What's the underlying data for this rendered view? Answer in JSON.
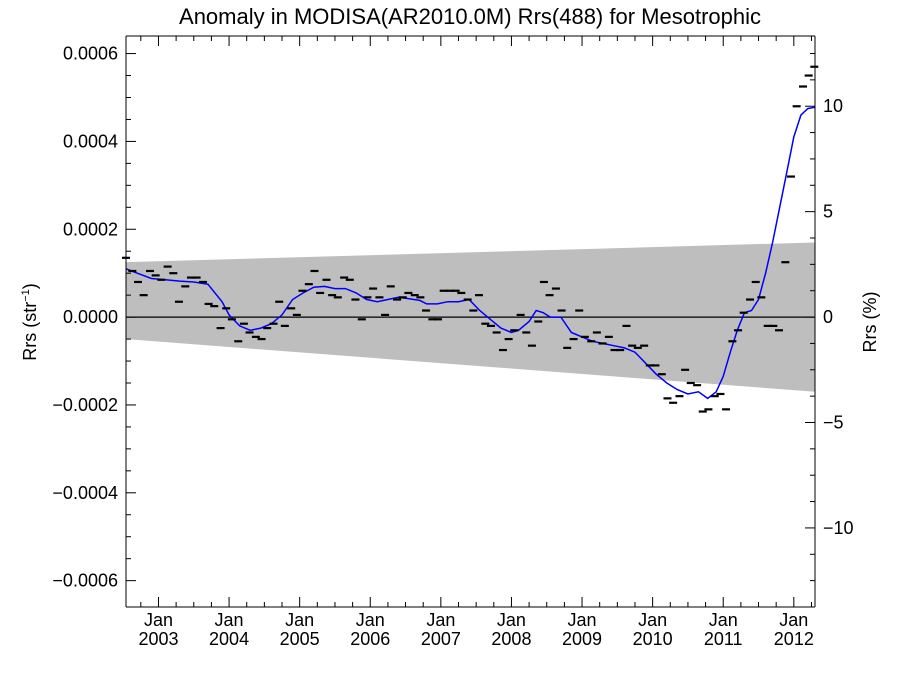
{
  "chart_data": {
    "type": "line",
    "title": "Anomaly in MODISA(AR2010.0M) Rrs(488) for Mesotrophic",
    "ylabel": "Rrs (str",
    "ylabel_sup": "−1",
    "ylabel_close": ")",
    "y2label": "Rrs (%)",
    "y2_scale_percent_per_unit": 20833,
    "xlim": [
      2002.54,
      2012.3
    ],
    "ylim": [
      -0.00066,
      0.00064
    ],
    "y2lim": [
      -13.75,
      13.33
    ],
    "x_ticks": [
      {
        "x": 2003.0,
        "month": "Jan",
        "year": "2003"
      },
      {
        "x": 2004.0,
        "month": "Jan",
        "year": "2004"
      },
      {
        "x": 2005.0,
        "month": "Jan",
        "year": "2005"
      },
      {
        "x": 2006.0,
        "month": "Jan",
        "year": "2006"
      },
      {
        "x": 2007.0,
        "month": "Jan",
        "year": "2007"
      },
      {
        "x": 2008.0,
        "month": "Jan",
        "year": "2008"
      },
      {
        "x": 2009.0,
        "month": "Jan",
        "year": "2009"
      },
      {
        "x": 2010.0,
        "month": "Jan",
        "year": "2010"
      },
      {
        "x": 2011.0,
        "month": "Jan",
        "year": "2011"
      },
      {
        "x": 2012.0,
        "month": "Jan",
        "year": "2012"
      }
    ],
    "y_ticks": [
      {
        "v": 0.0006,
        "label": "0.0006"
      },
      {
        "v": 0.0004,
        "label": "0.0004"
      },
      {
        "v": 0.0002,
        "label": "0.0002"
      },
      {
        "v": 0.0,
        "label": "0.0000"
      },
      {
        "v": -0.0002,
        "label": "−0.0002"
      },
      {
        "v": -0.0004,
        "label": "−0.0004"
      },
      {
        "v": -0.0006,
        "label": "−0.0006"
      }
    ],
    "y2_ticks": [
      {
        "v": 10,
        "label": "10"
      },
      {
        "v": 5,
        "label": "5"
      },
      {
        "v": 0,
        "label": "0"
      },
      {
        "v": -5,
        "label": "−5"
      },
      {
        "v": -10,
        "label": "−10"
      }
    ],
    "band": {
      "x": [
        2002.54,
        2012.3
      ],
      "upper": [
        0.000125,
        0.00017
      ],
      "lower": [
        -5e-05,
        -0.00017
      ]
    },
    "grid": false,
    "series": [
      {
        "kind": "monthly-anomaly-markers",
        "color": "#000000",
        "points": [
          [
            2002.54,
            0.000135
          ],
          [
            2002.63,
            0.000105
          ],
          [
            2002.71,
            8e-05
          ],
          [
            2002.79,
            5e-05
          ],
          [
            2002.88,
            0.000105
          ],
          [
            2002.96,
            9.5e-05
          ],
          [
            2003.04,
            8.5e-05
          ],
          [
            2003.13,
            0.000115
          ],
          [
            2003.21,
            0.0001
          ],
          [
            2003.29,
            3.5e-05
          ],
          [
            2003.38,
            7e-05
          ],
          [
            2003.46,
            9e-05
          ],
          [
            2003.54,
            9e-05
          ],
          [
            2003.63,
            8e-05
          ],
          [
            2003.71,
            3e-05
          ],
          [
            2003.79,
            2.5e-05
          ],
          [
            2003.88,
            -2.5e-05
          ],
          [
            2003.96,
            2e-05
          ],
          [
            2004.04,
            -5e-06
          ],
          [
            2004.13,
            -5.5e-05
          ],
          [
            2004.21,
            -1.5e-05
          ],
          [
            2004.29,
            -3.5e-05
          ],
          [
            2004.38,
            -4.5e-05
          ],
          [
            2004.46,
            -5e-05
          ],
          [
            2004.54,
            -2.5e-05
          ],
          [
            2004.63,
            -1.5e-05
          ],
          [
            2004.71,
            3.5e-05
          ],
          [
            2004.79,
            -2e-05
          ],
          [
            2004.88,
            2e-05
          ],
          [
            2004.96,
            5e-06
          ],
          [
            2005.04,
            6e-05
          ],
          [
            2005.13,
            7.5e-05
          ],
          [
            2005.21,
            0.000105
          ],
          [
            2005.29,
            5.5e-05
          ],
          [
            2005.38,
            8.5e-05
          ],
          [
            2005.46,
            5e-05
          ],
          [
            2005.54,
            4.5e-05
          ],
          [
            2005.63,
            9e-05
          ],
          [
            2005.71,
            8.5e-05
          ],
          [
            2005.79,
            4e-05
          ],
          [
            2005.88,
            -5e-06
          ],
          [
            2005.96,
            4.5e-05
          ],
          [
            2006.04,
            6.5e-05
          ],
          [
            2006.13,
            4.5e-05
          ],
          [
            2006.21,
            5e-06
          ],
          [
            2006.29,
            7e-05
          ],
          [
            2006.38,
            4e-05
          ],
          [
            2006.46,
            4.5e-05
          ],
          [
            2006.54,
            5.5e-05
          ],
          [
            2006.63,
            5e-05
          ],
          [
            2006.71,
            4.5e-05
          ],
          [
            2006.79,
            1.5e-05
          ],
          [
            2006.88,
            -5e-06
          ],
          [
            2006.96,
            -5e-06
          ],
          [
            2007.04,
            6e-05
          ],
          [
            2007.13,
            6e-05
          ],
          [
            2007.21,
            6e-05
          ],
          [
            2007.29,
            5.5e-05
          ],
          [
            2007.38,
            4e-05
          ],
          [
            2007.46,
            1.5e-05
          ],
          [
            2007.54,
            5e-05
          ],
          [
            2007.63,
            -1.5e-05
          ],
          [
            2007.71,
            -2e-05
          ],
          [
            2007.79,
            -3.5e-05
          ],
          [
            2007.88,
            -7.5e-05
          ],
          [
            2007.96,
            -5e-05
          ],
          [
            2008.04,
            -3e-05
          ],
          [
            2008.13,
            5e-06
          ],
          [
            2008.21,
            -3.5e-05
          ],
          [
            2008.29,
            -6.5e-05
          ],
          [
            2008.38,
            -1e-05
          ],
          [
            2008.46,
            8e-05
          ],
          [
            2008.54,
            5e-05
          ],
          [
            2008.63,
            6.5e-05
          ],
          [
            2008.71,
            1.5e-05
          ],
          [
            2008.79,
            -7e-05
          ],
          [
            2008.88,
            -5e-05
          ],
          [
            2008.96,
            1.5e-05
          ],
          [
            2009.04,
            -4.5e-05
          ],
          [
            2009.13,
            -5.5e-05
          ],
          [
            2009.21,
            -3.5e-05
          ],
          [
            2009.29,
            -6e-05
          ],
          [
            2009.38,
            -4.5e-05
          ],
          [
            2009.46,
            -7.5e-05
          ],
          [
            2009.54,
            -7.5e-05
          ],
          [
            2009.63,
            -2e-05
          ],
          [
            2009.71,
            -6.5e-05
          ],
          [
            2009.79,
            -7e-05
          ],
          [
            2009.88,
            -6.5e-05
          ],
          [
            2009.96,
            -0.00011
          ],
          [
            2010.04,
            -0.00011
          ],
          [
            2010.13,
            -0.00013
          ],
          [
            2010.21,
            -0.000185
          ],
          [
            2010.29,
            -0.000195
          ],
          [
            2010.38,
            -0.00018
          ],
          [
            2010.46,
            -0.00012
          ],
          [
            2010.54,
            -0.00015
          ],
          [
            2010.63,
            -0.000155
          ],
          [
            2010.71,
            -0.000215
          ],
          [
            2010.79,
            -0.00021
          ],
          [
            2010.88,
            -0.00018
          ],
          [
            2010.96,
            -0.000175
          ],
          [
            2011.04,
            -0.00021
          ],
          [
            2011.13,
            -5.5e-05
          ],
          [
            2011.21,
            -3e-05
          ],
          [
            2011.29,
            1e-05
          ],
          [
            2011.38,
            4e-05
          ],
          [
            2011.46,
            8e-05
          ],
          [
            2011.54,
            4.5e-05
          ],
          [
            2011.63,
            -2e-05
          ],
          [
            2011.71,
            -2e-05
          ],
          [
            2011.79,
            -3e-05
          ],
          [
            2011.88,
            0.000125
          ],
          [
            2011.96,
            0.00032
          ],
          [
            2012.04,
            0.00048
          ],
          [
            2012.13,
            0.000525
          ],
          [
            2012.21,
            0.00055
          ],
          [
            2012.29,
            0.00057
          ]
        ]
      },
      {
        "kind": "running-mean",
        "color": "#0000ff",
        "points": [
          [
            2002.54,
            0.00011
          ],
          [
            2002.7,
            0.0001
          ],
          [
            2002.9,
            8.8e-05
          ],
          [
            2003.1,
            8.5e-05
          ],
          [
            2003.3,
            8.2e-05
          ],
          [
            2003.5,
            8e-05
          ],
          [
            2003.7,
            7.5e-05
          ],
          [
            2003.9,
            3.5e-05
          ],
          [
            2004.0,
            5e-06
          ],
          [
            2004.15,
            -2e-05
          ],
          [
            2004.3,
            -3e-05
          ],
          [
            2004.45,
            -2.5e-05
          ],
          [
            2004.6,
            -1.5e-05
          ],
          [
            2004.75,
            5e-06
          ],
          [
            2004.9,
            4e-05
          ],
          [
            2005.05,
            5.5e-05
          ],
          [
            2005.2,
            6.8e-05
          ],
          [
            2005.35,
            7e-05
          ],
          [
            2005.5,
            6.5e-05
          ],
          [
            2005.65,
            6.5e-05
          ],
          [
            2005.8,
            5.5e-05
          ],
          [
            2005.95,
            4e-05
          ],
          [
            2006.1,
            3.5e-05
          ],
          [
            2006.25,
            4e-05
          ],
          [
            2006.4,
            4.5e-05
          ],
          [
            2006.55,
            4.2e-05
          ],
          [
            2006.7,
            3.8e-05
          ],
          [
            2006.8,
            3e-05
          ],
          [
            2006.95,
            3e-05
          ],
          [
            2007.1,
            3.5e-05
          ],
          [
            2007.25,
            3.5e-05
          ],
          [
            2007.4,
            4e-05
          ],
          [
            2007.55,
            1.5e-05
          ],
          [
            2007.7,
            -5e-06
          ],
          [
            2007.85,
            -2.5e-05
          ],
          [
            2008.0,
            -3.5e-05
          ],
          [
            2008.1,
            -3e-05
          ],
          [
            2008.25,
            -1e-05
          ],
          [
            2008.35,
            1.5e-05
          ],
          [
            2008.45,
            1e-05
          ],
          [
            2008.55,
            0.0
          ],
          [
            2008.7,
            0.0
          ],
          [
            2008.85,
            -3.5e-05
          ],
          [
            2009.0,
            -4.5e-05
          ],
          [
            2009.15,
            -5.5e-05
          ],
          [
            2009.3,
            -6e-05
          ],
          [
            2009.45,
            -6.5e-05
          ],
          [
            2009.6,
            -7e-05
          ],
          [
            2009.75,
            -8e-05
          ],
          [
            2009.9,
            -0.000105
          ],
          [
            2010.05,
            -0.00013
          ],
          [
            2010.2,
            -0.00015
          ],
          [
            2010.35,
            -0.000165
          ],
          [
            2010.5,
            -0.000175
          ],
          [
            2010.65,
            -0.00017
          ],
          [
            2010.78,
            -0.000185
          ],
          [
            2010.9,
            -0.00017
          ],
          [
            2011.0,
            -0.000135
          ],
          [
            2011.1,
            -8e-05
          ],
          [
            2011.2,
            -3e-05
          ],
          [
            2011.3,
            1e-05
          ],
          [
            2011.4,
            1.5e-05
          ],
          [
            2011.5,
            4e-05
          ],
          [
            2011.6,
            0.0001
          ],
          [
            2011.7,
            0.00017
          ],
          [
            2011.8,
            0.00025
          ],
          [
            2011.9,
            0.00033
          ],
          [
            2012.0,
            0.00041
          ],
          [
            2012.1,
            0.00046
          ],
          [
            2012.2,
            0.000475
          ],
          [
            2012.3,
            0.000478
          ]
        ]
      }
    ]
  }
}
